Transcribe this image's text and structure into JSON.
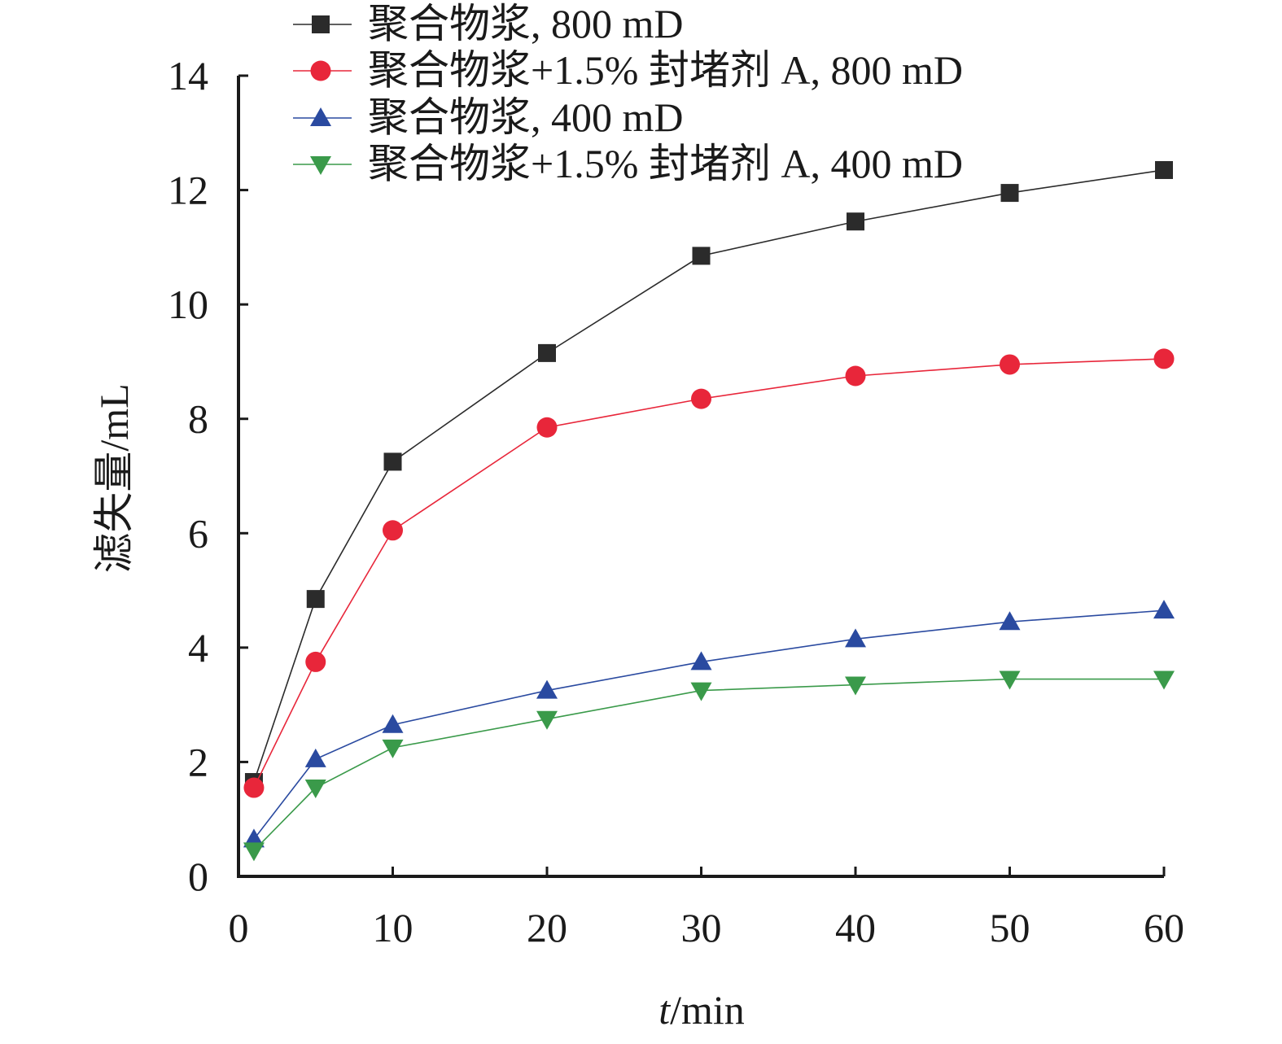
{
  "chart_data": {
    "type": "line",
    "xlabel_italic": "t",
    "xlabel_rest": "/min",
    "ylabel": "滤失量/mL",
    "xlim": [
      0,
      60
    ],
    "ylim": [
      0,
      14
    ],
    "xticks": [
      0,
      10,
      20,
      30,
      40,
      50,
      60
    ],
    "yticks": [
      0,
      2,
      4,
      6,
      8,
      10,
      12,
      14
    ],
    "grid": false,
    "legend_position": "top",
    "x": [
      1,
      5,
      10,
      20,
      30,
      40,
      50,
      60
    ],
    "series": [
      {
        "name": "聚合物浆, 800 mD",
        "marker": "square",
        "color": "#2b2b2b",
        "values": [
          1.65,
          4.85,
          7.25,
          9.15,
          10.85,
          11.45,
          11.95,
          12.35
        ]
      },
      {
        "name": "聚合物浆+1.5% 封堵剂 A, 800 mD",
        "marker": "circle",
        "color": "#e8263a",
        "values": [
          1.55,
          3.75,
          6.05,
          7.85,
          8.35,
          8.75,
          8.95,
          9.05
        ]
      },
      {
        "name": "聚合物浆, 400 mD",
        "marker": "triangle-up",
        "color": "#2a4aa0",
        "values": [
          0.65,
          2.05,
          2.65,
          3.25,
          3.75,
          4.15,
          4.45,
          4.65
        ]
      },
      {
        "name": "聚合物浆+1.5% 封堵剂 A, 400 mD",
        "marker": "triangle-down",
        "color": "#3a9a4a",
        "values": [
          0.45,
          1.55,
          2.25,
          2.75,
          3.25,
          3.35,
          3.45,
          3.45
        ]
      }
    ]
  }
}
